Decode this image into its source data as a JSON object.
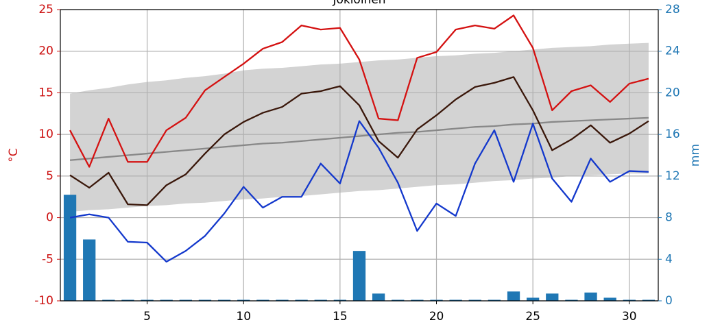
{
  "chart_data": {
    "type": "line",
    "title": "Jokioinen",
    "ylabel": "°C",
    "y2label": "mm",
    "ylabel_color": "#cc1111",
    "y2label_color": "#1f77b4",
    "x": [
      1,
      2,
      3,
      4,
      5,
      6,
      7,
      8,
      9,
      10,
      11,
      12,
      13,
      14,
      15,
      16,
      17,
      18,
      19,
      20,
      21,
      22,
      23,
      24,
      25,
      26,
      27,
      28,
      29,
      30,
      31
    ],
    "xlim": [
      0.5,
      31.5
    ],
    "xticks": [
      5,
      10,
      15,
      20,
      25,
      30
    ],
    "ylim": [
      -10,
      25
    ],
    "yticks": [
      -10,
      -5,
      0,
      5,
      10,
      15,
      20,
      25
    ],
    "y2lim": [
      0,
      28
    ],
    "y2ticks": [
      0,
      4,
      8,
      12,
      16,
      20,
      24,
      28
    ],
    "grid": true,
    "band": {
      "color": "#d3d3d3",
      "upper": [
        14.9,
        15.3,
        15.6,
        16.0,
        16.3,
        16.5,
        16.8,
        17.0,
        17.3,
        17.7,
        17.9,
        18.0,
        18.2,
        18.4,
        18.5,
        18.7,
        18.9,
        19.0,
        19.2,
        19.4,
        19.5,
        19.7,
        19.8,
        20.0,
        20.2,
        20.4,
        20.5,
        20.6,
        20.8,
        20.9,
        21.0
      ],
      "lower": [
        0.7,
        0.9,
        1.0,
        1.2,
        1.4,
        1.5,
        1.7,
        1.8,
        2.0,
        2.2,
        2.3,
        2.5,
        2.6,
        2.8,
        3.0,
        3.2,
        3.3,
        3.5,
        3.7,
        3.9,
        4.0,
        4.2,
        4.4,
        4.5,
        4.7,
        4.8,
        5.0,
        5.1,
        5.2,
        5.3,
        5.3
      ]
    },
    "bars": {
      "color": "#1f77b4",
      "axis": "y2",
      "values": [
        10.2,
        5.9,
        0.1,
        0.1,
        0.1,
        0.1,
        0.1,
        0.1,
        0.1,
        0.1,
        0.1,
        0.1,
        0.1,
        0.1,
        0.1,
        4.8,
        0.7,
        0.1,
        0.1,
        0.1,
        0.1,
        0.1,
        0.1,
        0.9,
        0.3,
        0.7,
        0.1,
        0.8,
        0.3,
        0.1,
        0.1
      ]
    },
    "series": [
      {
        "color": "#888888",
        "values": [
          6.9,
          7.1,
          7.3,
          7.5,
          7.7,
          7.9,
          8.1,
          8.3,
          8.5,
          8.7,
          8.9,
          9.0,
          9.2,
          9.4,
          9.6,
          9.8,
          10.0,
          10.2,
          10.3,
          10.5,
          10.7,
          10.9,
          11.0,
          11.2,
          11.3,
          11.5,
          11.6,
          11.7,
          11.8,
          11.9,
          12.0
        ]
      },
      {
        "color": "#d41111",
        "values": [
          10.5,
          6.1,
          11.9,
          6.7,
          6.7,
          10.5,
          12.0,
          15.3,
          16.9,
          18.5,
          20.3,
          21.1,
          23.1,
          22.6,
          22.8,
          19.0,
          11.9,
          11.7,
          19.2,
          19.9,
          22.6,
          23.1,
          22.7,
          24.3,
          20.4,
          12.9,
          15.2,
          15.9,
          13.9,
          16.1,
          16.7
        ]
      },
      {
        "color": "#3a170a",
        "values": [
          5.1,
          3.6,
          5.4,
          1.6,
          1.5,
          3.9,
          5.2,
          7.7,
          10.0,
          11.5,
          12.6,
          13.3,
          14.9,
          15.2,
          15.8,
          13.5,
          9.2,
          7.2,
          10.6,
          12.3,
          14.2,
          15.7,
          16.2,
          16.9,
          12.9,
          8.1,
          9.4,
          11.1,
          9.0,
          10.1,
          11.6
        ]
      },
      {
        "color": "#1338cc",
        "values": [
          0.0,
          0.4,
          0.0,
          -2.9,
          -3.0,
          -5.3,
          -4.0,
          -2.2,
          0.5,
          3.7,
          1.2,
          2.5,
          2.5,
          6.5,
          4.1,
          11.6,
          8.4,
          4.2,
          -1.6,
          1.7,
          0.2,
          6.5,
          10.5,
          4.3,
          11.3,
          4.7,
          1.9,
          7.1,
          4.3,
          5.6,
          5.5
        ]
      }
    ]
  }
}
